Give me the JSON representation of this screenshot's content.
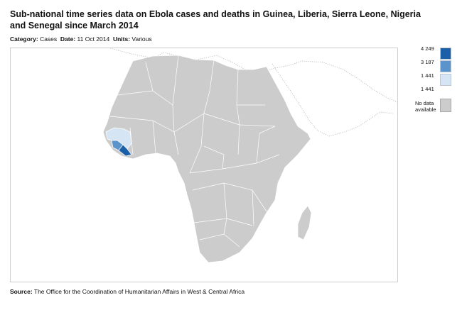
{
  "title": "Sub-national time series data on Ebola cases and deaths in Guinea, Liberia, Sierra Leone, Nigeria and Senegal since March 2014",
  "meta": {
    "category_label": "Category:",
    "category_value": "Cases",
    "date_label": "Date:",
    "date_value": "11 Oct 2014",
    "units_label": "Units:",
    "units_value": "Various"
  },
  "legend": {
    "bins": [
      {
        "label": "4 249",
        "color": "#1a5fa8"
      },
      {
        "label": "3 187",
        "color": "#5b93cc"
      },
      {
        "label": "1 441",
        "color": "#d6e5f3"
      }
    ],
    "min_label": "1 441",
    "no_data_label_line1": "No data",
    "no_data_label_line2": "available",
    "no_data_color": "#cccccc"
  },
  "map": {
    "land_color": "#cccccc",
    "border_color": "#ffffff",
    "highlighted_regions": [
      {
        "region": "Guinea",
        "color": "#d6e5f3"
      },
      {
        "region": "Sierra Leone",
        "color": "#5b93cc"
      },
      {
        "region": "Liberia",
        "color": "#1a5fa8"
      }
    ]
  },
  "source": {
    "label": "Source:",
    "text": "The Office for the Coordination of Humanitarian Affairs in West & Central Africa"
  }
}
